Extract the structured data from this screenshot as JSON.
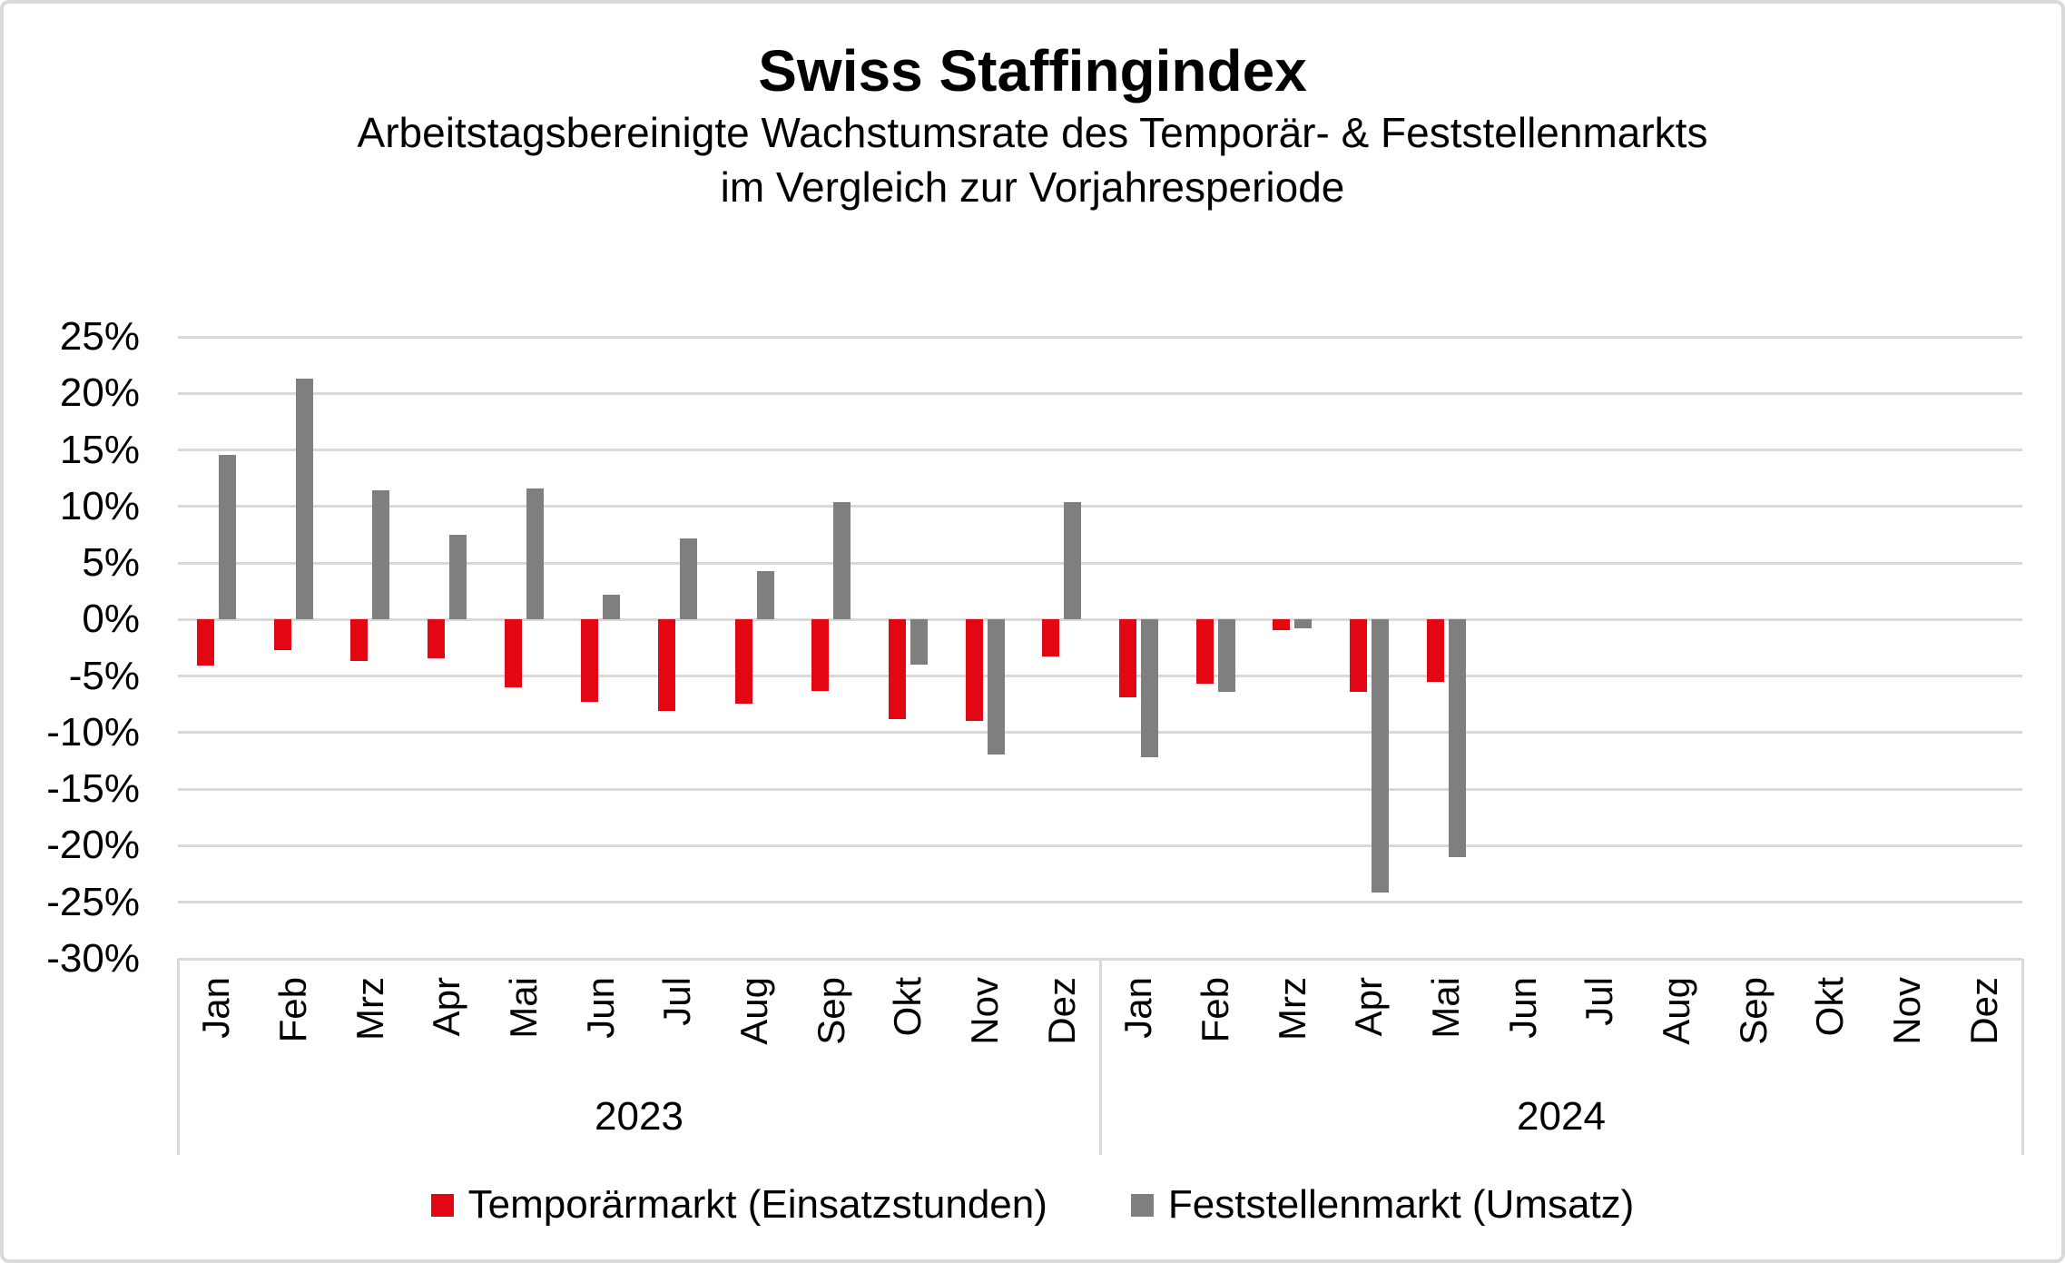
{
  "header": {
    "title": "Swiss Staffingindex",
    "subtitle_line1": "Arbeitstagsbereinigte Wachstumsrate des Temporär- & Feststellenmarkts",
    "subtitle_line2": "im Vergleich zur Vorjahresperiode"
  },
  "chart_data": {
    "type": "bar",
    "title": "Swiss Staffingindex",
    "subtitle": "Arbeitstagsbereinigte Wachstumsrate des Temporär- & Feststellenmarkts im Vergleich zur Vorjahresperiode",
    "ylim": [
      -30,
      25
    ],
    "grid": true,
    "legend_position": "bottom",
    "yticks": [
      {
        "value": 25,
        "label": "25%"
      },
      {
        "value": 20,
        "label": "20%"
      },
      {
        "value": 15,
        "label": "15%"
      },
      {
        "value": 10,
        "label": "10%"
      },
      {
        "value": 5,
        "label": "5%"
      },
      {
        "value": 0,
        "label": "0%"
      },
      {
        "value": -5,
        "label": "-5%"
      },
      {
        "value": -10,
        "label": "-10%"
      },
      {
        "value": -15,
        "label": "-15%"
      },
      {
        "value": -20,
        "label": "-20%"
      },
      {
        "value": -25,
        "label": "-25%"
      },
      {
        "value": -30,
        "label": "-30%"
      }
    ],
    "month_labels": [
      "Jan",
      "Feb",
      "Mrz",
      "Apr",
      "Mai",
      "Jun",
      "Jul",
      "Aug",
      "Sep",
      "Okt",
      "Nov",
      "Dez"
    ],
    "x_groups": [
      {
        "year": "2023"
      },
      {
        "year": "2024"
      }
    ],
    "series": [
      {
        "key": "temporaermarkt",
        "name": "Temporärmarkt (Einsatzstunden)",
        "color": "#e30613",
        "values": [
          -4.1,
          -2.7,
          -3.7,
          -3.4,
          -6.0,
          -7.3,
          -8.1,
          -7.4,
          -6.3,
          -8.8,
          -9.0,
          -3.3,
          -6.9,
          -5.7,
          -0.9,
          -6.4,
          -5.5,
          null,
          null,
          null,
          null,
          null,
          null,
          null
        ]
      },
      {
        "key": "feststellenmarkt",
        "name": "Feststellenmarkt (Umsatz)",
        "color": "#7f7f7f",
        "values": [
          14.6,
          21.3,
          11.4,
          7.5,
          11.6,
          2.2,
          7.2,
          4.3,
          10.4,
          -4.0,
          -11.9,
          10.4,
          -12.2,
          -6.4,
          -0.8,
          -24.1,
          -21.0,
          null,
          null,
          null,
          null,
          null,
          null,
          null
        ]
      }
    ]
  },
  "colors": {
    "grid": "#d9d9d9",
    "temporaermarkt_red": "#e30613",
    "feststellenmarkt_gray": "#7f7f7f"
  }
}
